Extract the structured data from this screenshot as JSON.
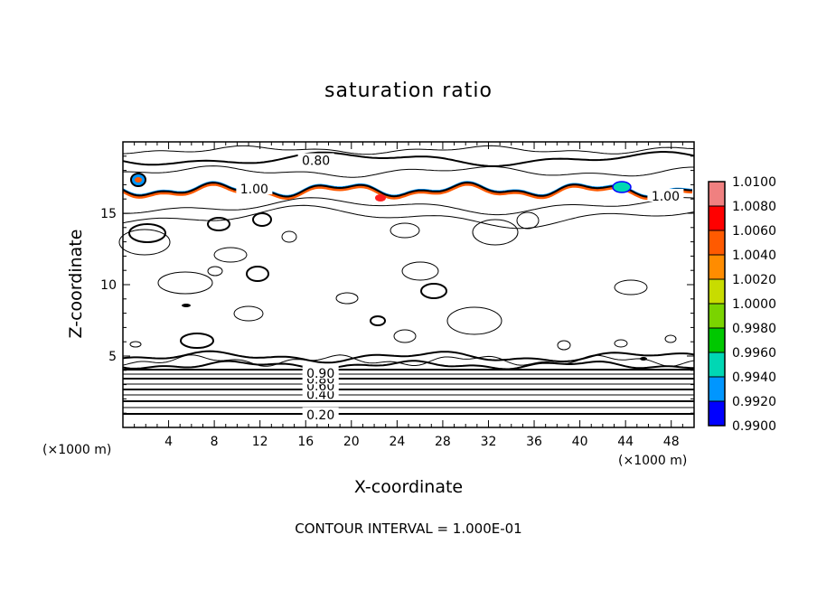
{
  "title": "saturation ratio",
  "xlabel": "X-coordinate",
  "ylabel": "Z-coordinate",
  "x_unit_left": "(×1000 m)",
  "x_unit_right": "(×1000 m)",
  "footer": "CONTOUR INTERVAL = 1.000E-01",
  "chart_data": {
    "type": "contour",
    "title": "saturation ratio",
    "xlabel": "X-coordinate",
    "ylabel": "Z-coordinate",
    "xlim": [
      0,
      50
    ],
    "ylim": [
      0,
      20
    ],
    "x_ticks": [
      4,
      8,
      12,
      16,
      20,
      24,
      28,
      32,
      36,
      40,
      44,
      48
    ],
    "y_ticks": [
      5,
      10,
      15
    ],
    "contour_interval": 0.1,
    "contour_labels": [
      {
        "text": "0.80",
        "x": 16.9,
        "y": 18.7
      },
      {
        "text": "1.00",
        "x": 11.5,
        "y": 16.7
      },
      {
        "text": "1.00",
        "x": 47.5,
        "y": 16.2
      },
      {
        "text": "0.20",
        "x": 17.3,
        "y": 0.9
      },
      {
        "text": "0.40",
        "x": 17.3,
        "y": 2.3
      },
      {
        "text": "0.60",
        "x": 17.3,
        "y": 2.9
      },
      {
        "text": "0.80",
        "x": 17.3,
        "y": 3.4
      },
      {
        "text": "0.90",
        "x": 17.3,
        "y": 3.8
      }
    ],
    "colorbar": {
      "levels": [
        "1.0100",
        "1.0080",
        "1.0060",
        "1.0040",
        "1.0020",
        "1.0000",
        "0.9980",
        "0.9960",
        "0.9940",
        "0.9920",
        "0.9900"
      ],
      "colors": [
        "#f08080",
        "#ff0000",
        "#ff5a00",
        "#ff8c00",
        "#c8dc00",
        "#7ad400",
        "#00c800",
        "#00d7b4",
        "#0096ff",
        "#0000ff",
        "#5a00c8"
      ]
    }
  }
}
